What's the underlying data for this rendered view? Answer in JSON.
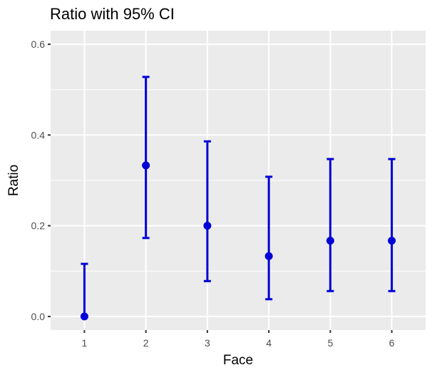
{
  "chart_data": {
    "type": "scatter",
    "title": "Ratio with 95% CI",
    "xlabel": "Face",
    "ylabel": "Ratio",
    "categories": [
      "1",
      "2",
      "3",
      "4",
      "5",
      "6"
    ],
    "series": [
      {
        "values": [
          0.0,
          0.333,
          0.2,
          0.133,
          0.167,
          0.167
        ],
        "ci_lower": [
          0.0,
          0.173,
          0.078,
          0.038,
          0.056,
          0.056
        ],
        "ci_upper": [
          0.116,
          0.528,
          0.386,
          0.308,
          0.347,
          0.347
        ],
        "color": "#0000d6"
      }
    ],
    "xlim": [
      0.45,
      6.55
    ],
    "ylim": [
      -0.03,
      0.63
    ],
    "y_ticks": [
      0.0,
      0.2,
      0.4,
      0.6
    ],
    "y_tick_labels": [
      "0.0",
      "0.2",
      "0.4",
      "0.6"
    ],
    "grid": true,
    "panel_background": "#ebebeb",
    "grid_color": "#ffffff"
  }
}
